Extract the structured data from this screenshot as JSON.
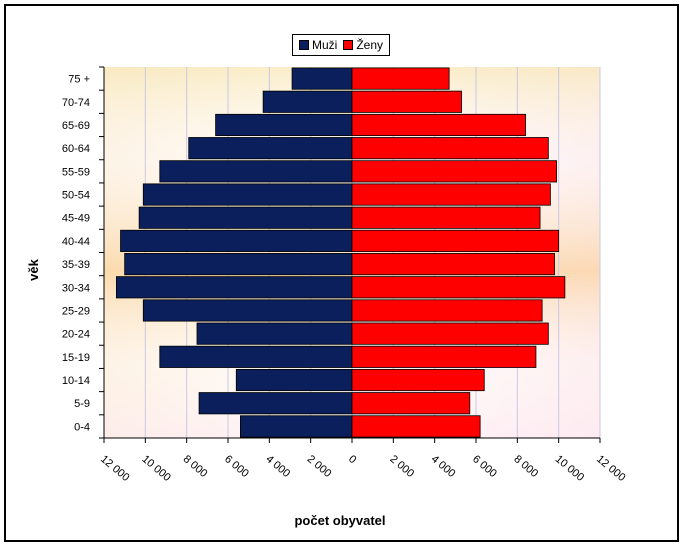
{
  "chart_data": {
    "type": "bar",
    "orientation": "horizontal",
    "categories": [
      "0-4",
      "5-9",
      "10-14",
      "15-19",
      "20-24",
      "25-29",
      "30-34",
      "35-39",
      "40-44",
      "45-49",
      "50-54",
      "55-59",
      "60-64",
      "65-69",
      "70-74",
      "75 +"
    ],
    "series": [
      {
        "name": "Muži",
        "color": "#0a1f5c",
        "values": [
          5400,
          7400,
          5600,
          9300,
          7500,
          10100,
          11400,
          11000,
          11200,
          10300,
          10100,
          9300,
          7900,
          6600,
          4300,
          2900
        ]
      },
      {
        "name": "Ženy",
        "color": "#ff0000",
        "values": [
          6200,
          5700,
          6400,
          8900,
          9500,
          9200,
          10300,
          9800,
          10000,
          9100,
          9600,
          9900,
          9500,
          8400,
          5300,
          4700
        ]
      }
    ],
    "xlabel": "počet obyvatel",
    "ylabel": "věk",
    "xlim": [
      -12000,
      12000
    ],
    "xticks": [
      "12 000",
      "10 000",
      "8 000",
      "6 000",
      "4 000",
      "2 000",
      "0",
      "2 000",
      "4 000",
      "6 000",
      "8 000",
      "10 000",
      "12 000"
    ],
    "grid": "vertical",
    "legend_position": "top"
  }
}
